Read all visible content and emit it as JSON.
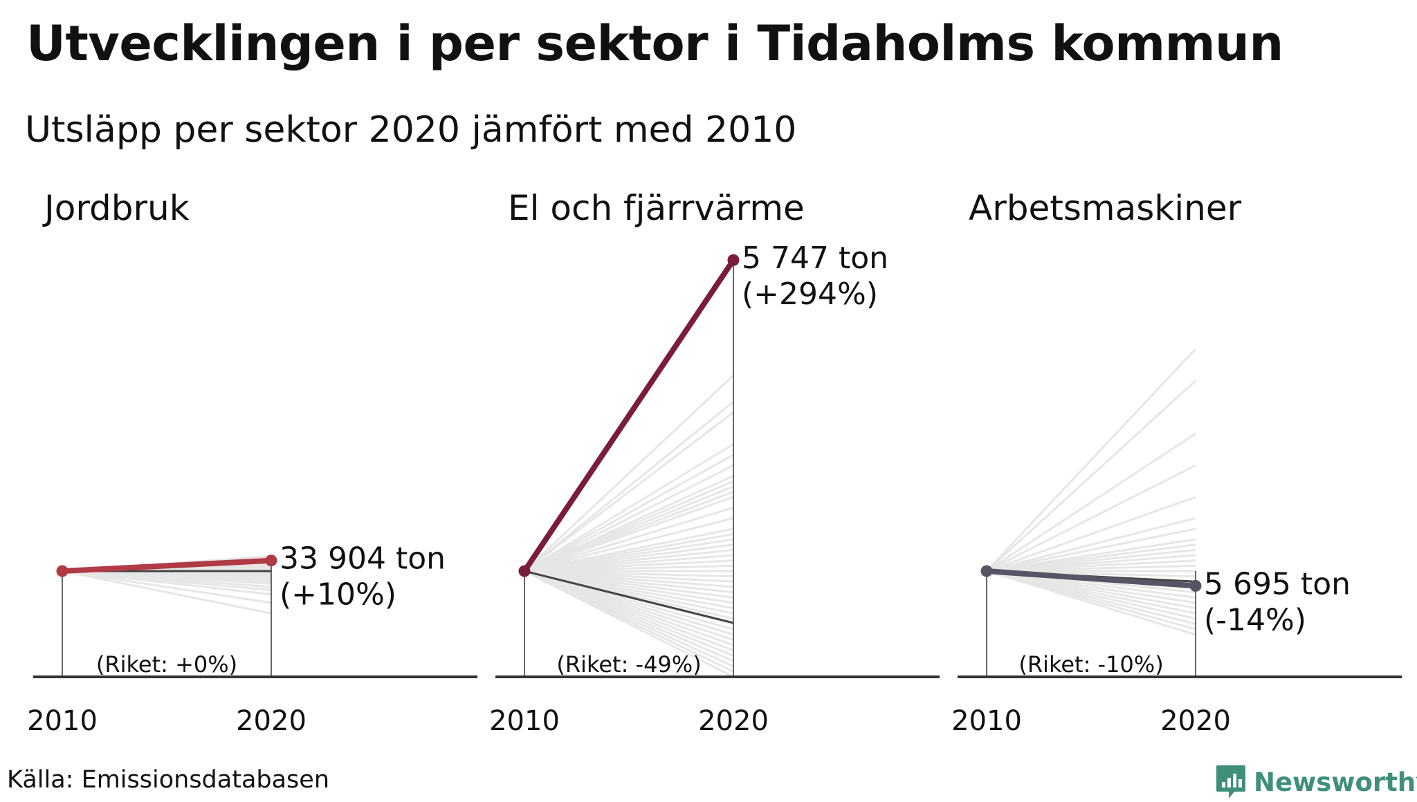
{
  "title": "Utvecklingen i per sektor i Tidaholms kommun",
  "subtitle": "Utsläpp per sektor 2020 jämfört med 2010",
  "source": "Källa: Emissionsdatabasen",
  "brand": {
    "name": "Newsworthy",
    "color": "#3f8f7a"
  },
  "colors": {
    "background_lines": "#e6e6e6",
    "national_line": "#444444",
    "axis": "#333333"
  },
  "chart_data": [
    {
      "type": "line",
      "panel_title": "Jordbruk",
      "x": [
        "2010",
        "2020"
      ],
      "color": "#b03a46",
      "highlight_change_pct": 10,
      "national_change_pct": 0,
      "label_value": "33 904 ton",
      "label_change": "(+10%)",
      "national_label": "(Riket: +0%)",
      "background_changes_pct": [
        -40,
        -30,
        -22,
        -18,
        -15,
        -12,
        -10,
        -8,
        -6,
        -4,
        -2,
        0,
        2,
        4,
        6,
        8,
        10,
        14
      ]
    },
    {
      "type": "line",
      "panel_title": "El och fjärrvärme",
      "x": [
        "2010",
        "2020"
      ],
      "color": "#7a1c3b",
      "highlight_change_pct": 294,
      "national_change_pct": -49,
      "label_value": "5 747 ton",
      "label_change": "(+294%)",
      "national_label": "(Riket: -49%)",
      "background_changes_pct": [
        -100,
        -95,
        -90,
        -85,
        -80,
        -75,
        -70,
        -65,
        -60,
        -55,
        -50,
        -45,
        -40,
        -35,
        -30,
        -25,
        -20,
        -15,
        -10,
        -5,
        0,
        5,
        10,
        15,
        20,
        25,
        30,
        35,
        40,
        50,
        60,
        70,
        75,
        80,
        85,
        90,
        100,
        110,
        120,
        150,
        160,
        185
      ]
    },
    {
      "type": "line",
      "panel_title": "Arbetsmaskiner",
      "x": [
        "2010",
        "2020"
      ],
      "color": "#555566",
      "highlight_change_pct": -14,
      "national_change_pct": -10,
      "label_value": "5 695 ton",
      "label_change": "(-14%)",
      "national_label": "(Riket: -10%)",
      "background_changes_pct": [
        -60,
        -55,
        -50,
        -45,
        -40,
        -35,
        -30,
        -25,
        -20,
        -15,
        -10,
        -5,
        0,
        5,
        10,
        15,
        20,
        25,
        30,
        40,
        50,
        70,
        100,
        130,
        180,
        210
      ]
    }
  ]
}
